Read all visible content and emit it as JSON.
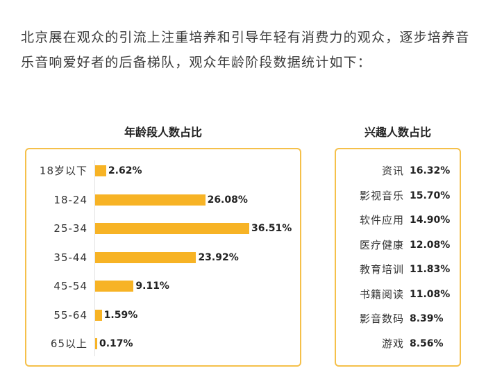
{
  "intro_text": "北京展在观众的引流上注重培养和引导年轻有消费力的观众，逐步培养音乐音响爱好者的后备梯队，观众年龄阶段数据统计如下：",
  "age_chart": {
    "title": "年龄段人数占比",
    "bar_color": "#f7b325",
    "border_color": "#f5c04a",
    "chart_data": {
      "type": "bar",
      "orientation": "horizontal",
      "categories": [
        "18岁以下",
        "18-24",
        "25-34",
        "35-44",
        "45-54",
        "55-64",
        "65以上"
      ],
      "values": [
        2.62,
        26.08,
        36.51,
        23.92,
        9.11,
        1.59,
        0.17
      ],
      "value_labels": [
        "2.62%",
        "26.08%",
        "36.51%",
        "23.92%",
        "9.11%",
        "1.59%",
        "0.17%"
      ],
      "unit": "%"
    }
  },
  "interest_table": {
    "title": "兴趣人数占比",
    "rows": [
      {
        "label": "资讯",
        "value": "16.32%"
      },
      {
        "label": "影视音乐",
        "value": "15.70%"
      },
      {
        "label": "软件应用",
        "value": "14.90%"
      },
      {
        "label": "医疗健康",
        "value": "12.08%"
      },
      {
        "label": "教育培训",
        "value": "11.83%"
      },
      {
        "label": "书籍阅读",
        "value": "11.08%"
      },
      {
        "label": "影音数码",
        "value": "8.39%"
      },
      {
        "label": "游戏",
        "value": "8.56%"
      }
    ]
  }
}
